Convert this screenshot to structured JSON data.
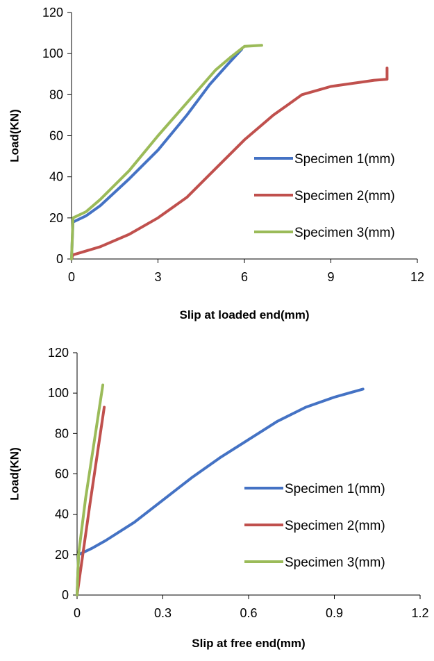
{
  "chart_data": [
    {
      "type": "line",
      "xlabel": "Slip at loaded end(mm)",
      "ylabel": "Load(KN)",
      "xlim": [
        0,
        12
      ],
      "ylim": [
        0,
        120
      ],
      "xticks": [
        0,
        3,
        6,
        9,
        12
      ],
      "yticks": [
        0,
        20,
        40,
        60,
        80,
        100,
        120
      ],
      "grid": false,
      "legend_position": "right",
      "series": [
        {
          "name": "Specimen 1(mm)",
          "color": "#4472C4",
          "x": [
            0,
            0.05,
            0.5,
            1.0,
            2.0,
            3.0,
            4.0,
            4.8,
            5.5,
            5.9
          ],
          "y": [
            0,
            18,
            21,
            26,
            39,
            53,
            70,
            85,
            96,
            102
          ]
        },
        {
          "name": "Specimen 2(mm)",
          "color": "#C0504D",
          "x": [
            0,
            0.05,
            1.0,
            2.0,
            3.0,
            4.0,
            5.0,
            6.0,
            7.0,
            7.5,
            8.0,
            8.5,
            9.0,
            10.0,
            10.5,
            10.95,
            10.95,
            10.95
          ],
          "y": [
            0,
            2,
            6,
            12,
            20,
            30,
            44,
            58,
            70,
            75,
            80,
            82,
            84,
            86,
            87,
            87.5,
            88,
            93
          ]
        },
        {
          "name": "Specimen 3(mm)",
          "color": "#9BBB59",
          "x": [
            0,
            0.05,
            0.5,
            1.0,
            2.0,
            3.0,
            4.0,
            5.0,
            5.5,
            6.0,
            6.6
          ],
          "y": [
            0,
            20,
            23,
            29,
            43,
            60,
            76,
            92,
            98,
            103.5,
            104
          ]
        }
      ]
    },
    {
      "type": "line",
      "xlabel": "Slip at free end(mm)",
      "ylabel": "Load(KN)",
      "xlim": [
        0,
        1.2
      ],
      "ylim": [
        0,
        120
      ],
      "xticks": [
        0,
        0.3,
        0.6,
        0.9,
        1.2
      ],
      "yticks": [
        0,
        20,
        40,
        60,
        80,
        100,
        120
      ],
      "grid": false,
      "legend_position": "right",
      "series": [
        {
          "name": "Specimen 1(mm)",
          "color": "#4472C4",
          "x": [
            0,
            0.005,
            0.05,
            0.1,
            0.2,
            0.3,
            0.4,
            0.5,
            0.6,
            0.7,
            0.8,
            0.9,
            1.0
          ],
          "y": [
            0,
            20,
            23,
            27,
            36,
            47,
            58,
            68,
            77,
            86,
            93,
            98,
            102
          ]
        },
        {
          "name": "Specimen 2(mm)",
          "color": "#C0504D",
          "x": [
            0,
            0.045,
            0.095
          ],
          "y": [
            0,
            45,
            93
          ]
        },
        {
          "name": "Specimen 3(mm)",
          "color": "#9BBB59",
          "x": [
            0,
            0.005,
            0.03,
            0.06,
            0.09
          ],
          "y": [
            0,
            20,
            48,
            76,
            104
          ]
        }
      ]
    }
  ]
}
